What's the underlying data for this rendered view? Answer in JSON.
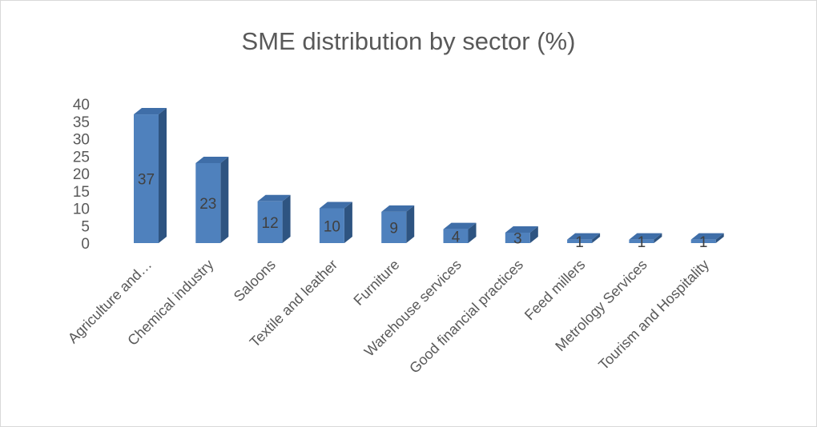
{
  "chart_data": {
    "type": "bar",
    "title": "SME distribution by sector (%)",
    "categories": [
      "Agriculture and…",
      "Chemical industry",
      "Saloons",
      "Textile and leather",
      "Furniture",
      "Warehouse services",
      "Good financial practices",
      "Feed millers",
      "Metrology Services",
      "Tourism and Hospitality"
    ],
    "values": [
      37,
      23,
      12,
      10,
      9,
      4,
      3,
      1,
      1,
      1
    ],
    "ylim": [
      0,
      40
    ],
    "yticks": [
      0,
      5,
      10,
      15,
      20,
      25,
      30,
      35,
      40
    ],
    "xlabel": "",
    "ylabel": "",
    "grid": false,
    "legend": "none",
    "style": "3d-column",
    "colors": {
      "front": "#4f81bd",
      "side": "#2e5481",
      "top": "#3f6ea8"
    }
  }
}
